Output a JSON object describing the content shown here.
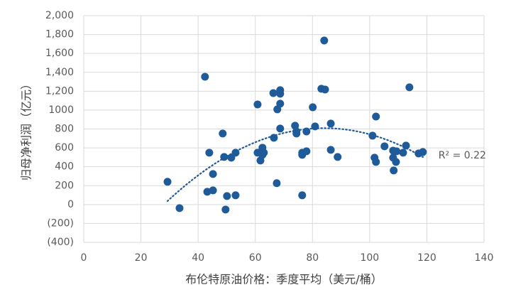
{
  "chart_data": {
    "type": "scatter",
    "x_label": "布伦特原油价格：季度平均（美元/桶）",
    "y_label": "归母净利润（亿元）",
    "series": [
      {
        "name": "归母净利润",
        "color": "#1f5a99",
        "x": [
          29.3,
          33.5,
          42.4,
          43.9,
          43.2,
          45.2,
          45.2,
          48.6,
          49.1,
          50.1,
          49.6,
          51.6,
          53.1,
          53.1,
          60.8,
          60.8,
          61.8,
          62.5,
          63.0,
          62.5,
          66.5,
          67.5,
          67.7,
          68.7,
          68.7,
          68.7,
          66.3,
          68.7,
          73.9,
          74.4,
          74.4,
          76.4,
          76.4,
          77.9,
          76.4,
          77.9,
          80.1,
          80.9,
          83.1,
          84.4,
          84.1,
          86.4,
          86.4,
          88.8,
          101.0,
          101.7,
          102.2,
          102.2,
          105.2,
          108.2,
          108.2,
          108.4,
          109.2,
          109.4,
          111.7,
          112.7,
          113.9,
          117.1,
          118.6
        ],
        "values": [
          241,
          -38,
          1353,
          549,
          135,
          323,
          150,
          752,
          504,
          90,
          -53,
          496,
          549,
          98,
          1060,
          549,
          466,
          602,
          549,
          526,
          707,
          226,
          1008,
          1211,
          1068,
          805,
          1180,
          1173,
          835,
          774,
          752,
          549,
          526,
          564,
          98,
          774,
          1030,
          827,
          1226,
          1218,
          1737,
          857,
          579,
          504,
          729,
          496,
          932,
          451,
          617,
          571,
          496,
          361,
          451,
          564,
          549,
          624,
          1241,
          541,
          556
        ]
      }
    ],
    "xlim": [
      0,
      140
    ],
    "xticks": [
      0,
      20,
      40,
      60,
      80,
      100,
      120,
      140
    ],
    "ylim": [
      -400,
      2000
    ],
    "yticks": [
      {
        "value": -400,
        "label": "(400)"
      },
      {
        "value": -200,
        "label": "(200)"
      },
      0,
      200,
      400,
      600,
      800,
      1000,
      {
        "value": 1200,
        "label": "1,200"
      },
      {
        "value": 1400,
        "label": "1,400"
      },
      {
        "value": 1600,
        "label": "1,600"
      },
      {
        "value": 1800,
        "label": "1,800"
      },
      {
        "value": 2000,
        "label": "2,000"
      }
    ],
    "grid": true,
    "trendline": {
      "type": "polynomial",
      "order": 2,
      "label": "R² = 0.22"
    }
  }
}
